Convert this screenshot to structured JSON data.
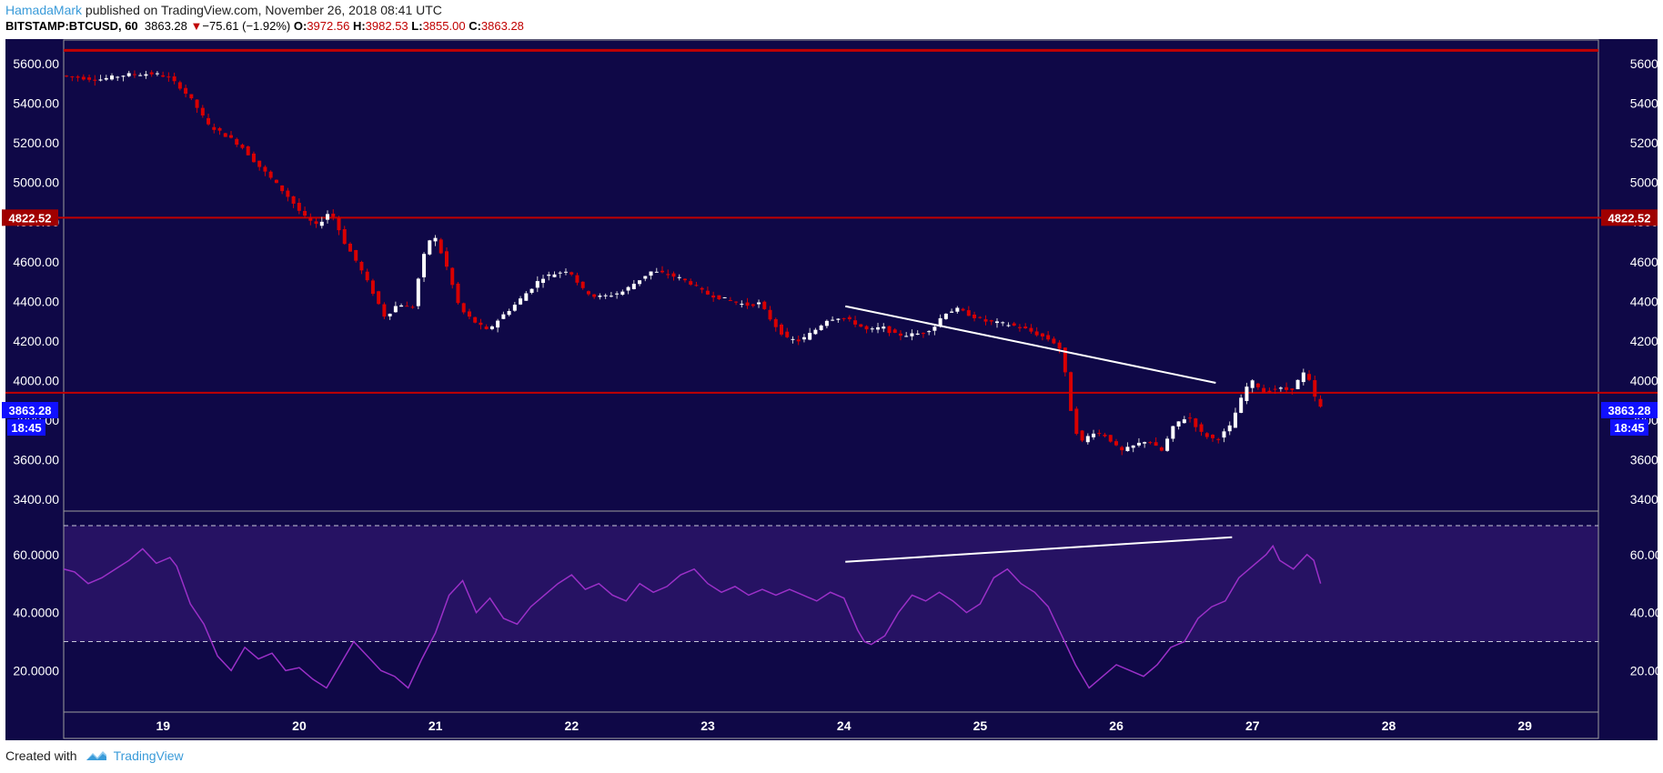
{
  "header": {
    "author": "HamadaMark",
    "published_text": " published on TradingView.com, November 26, 2018 08:41 UTC",
    "symbol": "BITSTAMP:BTCUSD, 60",
    "last": "3863.28",
    "change_arrow": "▼",
    "change": "−75.61 (−1.92%)",
    "o_label": "O:",
    "o_value": "3972.56",
    "h_label": "H:",
    "h_value": "3982.53",
    "l_label": "L:",
    "l_value": "3855.00",
    "c_label": "C:",
    "c_value": "3863.28"
  },
  "footer": {
    "created_with": "Created with",
    "brand": "TradingView"
  },
  "colors": {
    "panel_bg": "#0f0847",
    "rsi_band": "#261263",
    "up_candle": "#ffffff",
    "down_candle": "#d80000",
    "level_line": "#c20000",
    "rsi_line": "#9b30c8",
    "trendline": "#ffffff",
    "price_tag": "#1010ff",
    "level_tag": "#a00000",
    "axis_text": "#ffffff",
    "frame": "#9e9e9e"
  },
  "chart_data": {
    "type": "candlestick",
    "price_axis": {
      "ylim": [
        3340,
        5720
      ],
      "ticks": [
        "3400.00",
        "3600.00",
        "3800.00",
        "4000.00",
        "4200.00",
        "4400.00",
        "4600.00",
        "4800.00",
        "5000.00",
        "5200.00",
        "5400.00",
        "5600.00"
      ]
    },
    "time_axis": {
      "xlim": [
        18.27,
        29.54
      ],
      "ticks": [
        {
          "x": 19,
          "label": "19"
        },
        {
          "x": 20,
          "label": "20"
        },
        {
          "x": 21,
          "label": "21"
        },
        {
          "x": 22,
          "label": "22"
        },
        {
          "x": 23,
          "label": "23"
        },
        {
          "x": 24,
          "label": "24"
        },
        {
          "x": 25,
          "label": "25"
        },
        {
          "x": 26,
          "label": "26"
        },
        {
          "x": 27,
          "label": "27"
        },
        {
          "x": 28,
          "label": "28"
        },
        {
          "x": 29,
          "label": "29"
        }
      ]
    },
    "horizontal_levels": [
      5668,
      4822.52,
      3938
    ],
    "tags": {
      "level": "4822.52",
      "last_price": "3863.28",
      "countdown": "18:45"
    },
    "price_path": [
      [
        18.27,
        5540
      ],
      [
        18.55,
        5520
      ],
      [
        18.75,
        5545
      ],
      [
        18.95,
        5550
      ],
      [
        19.05,
        5535
      ],
      [
        19.15,
        5480
      ],
      [
        19.25,
        5400
      ],
      [
        19.35,
        5290
      ],
      [
        19.5,
        5230
      ],
      [
        19.6,
        5180
      ],
      [
        19.7,
        5100
      ],
      [
        19.8,
        5030
      ],
      [
        19.95,
        4920
      ],
      [
        20.05,
        4830
      ],
      [
        20.15,
        4780
      ],
      [
        20.25,
        4860
      ],
      [
        20.35,
        4700
      ],
      [
        20.45,
        4590
      ],
      [
        20.55,
        4460
      ],
      [
        20.65,
        4320
      ],
      [
        20.75,
        4390
      ],
      [
        20.85,
        4360
      ],
      [
        20.92,
        4600
      ],
      [
        21.0,
        4750
      ],
      [
        21.1,
        4580
      ],
      [
        21.2,
        4360
      ],
      [
        21.3,
        4300
      ],
      [
        21.4,
        4250
      ],
      [
        21.5,
        4320
      ],
      [
        21.6,
        4380
      ],
      [
        21.7,
        4450
      ],
      [
        21.8,
        4520
      ],
      [
        21.9,
        4540
      ],
      [
        22.0,
        4560
      ],
      [
        22.1,
        4460
      ],
      [
        22.2,
        4420
      ],
      [
        22.3,
        4430
      ],
      [
        22.4,
        4450
      ],
      [
        22.5,
        4500
      ],
      [
        22.6,
        4550
      ],
      [
        22.7,
        4540
      ],
      [
        22.8,
        4520
      ],
      [
        22.9,
        4490
      ],
      [
        23.0,
        4440
      ],
      [
        23.1,
        4420
      ],
      [
        23.2,
        4400
      ],
      [
        23.3,
        4380
      ],
      [
        23.4,
        4390
      ],
      [
        23.5,
        4290
      ],
      [
        23.6,
        4210
      ],
      [
        23.7,
        4200
      ],
      [
        23.8,
        4250
      ],
      [
        23.9,
        4310
      ],
      [
        24.0,
        4320
      ],
      [
        24.1,
        4290
      ],
      [
        24.2,
        4250
      ],
      [
        24.3,
        4270
      ],
      [
        24.4,
        4230
      ],
      [
        24.5,
        4230
      ],
      [
        24.6,
        4240
      ],
      [
        24.7,
        4280
      ],
      [
        24.75,
        4340
      ],
      [
        24.85,
        4360
      ],
      [
        24.95,
        4330
      ],
      [
        25.05,
        4300
      ],
      [
        25.15,
        4290
      ],
      [
        25.25,
        4280
      ],
      [
        25.35,
        4260
      ],
      [
        25.45,
        4230
      ],
      [
        25.55,
        4200
      ],
      [
        25.62,
        4150
      ],
      [
        25.68,
        3870
      ],
      [
        25.75,
        3680
      ],
      [
        25.85,
        3740
      ],
      [
        25.95,
        3720
      ],
      [
        26.05,
        3640
      ],
      [
        26.15,
        3670
      ],
      [
        26.25,
        3700
      ],
      [
        26.35,
        3640
      ],
      [
        26.45,
        3780
      ],
      [
        26.55,
        3820
      ],
      [
        26.65,
        3730
      ],
      [
        26.75,
        3700
      ],
      [
        26.85,
        3760
      ],
      [
        26.92,
        3880
      ],
      [
        27.0,
        4000
      ],
      [
        27.05,
        3980
      ],
      [
        27.1,
        3940
      ],
      [
        27.2,
        3960
      ],
      [
        27.3,
        3950
      ],
      [
        27.4,
        4040
      ],
      [
        27.45,
        3980
      ],
      [
        27.5,
        3863.28
      ]
    ],
    "trendline_price": {
      "from": [
        24.01,
        4375
      ],
      "to": [
        26.73,
        3988
      ]
    },
    "rsi": {
      "ylim": [
        6,
        75
      ],
      "ticks": [
        "20.0000",
        "40.0000",
        "60.0000"
      ],
      "band": [
        30,
        70
      ],
      "values": [
        [
          18.27,
          55
        ],
        [
          18.35,
          54
        ],
        [
          18.45,
          50
        ],
        [
          18.55,
          52
        ],
        [
          18.65,
          55
        ],
        [
          18.75,
          58
        ],
        [
          18.85,
          62
        ],
        [
          18.95,
          57
        ],
        [
          19.05,
          59
        ],
        [
          19.1,
          56
        ],
        [
          19.2,
          43
        ],
        [
          19.3,
          36
        ],
        [
          19.4,
          25
        ],
        [
          19.5,
          20
        ],
        [
          19.6,
          28
        ],
        [
          19.7,
          24
        ],
        [
          19.8,
          26
        ],
        [
          19.9,
          20
        ],
        [
          20.0,
          21
        ],
        [
          20.1,
          17
        ],
        [
          20.2,
          14
        ],
        [
          20.3,
          22
        ],
        [
          20.4,
          30
        ],
        [
          20.5,
          25
        ],
        [
          20.6,
          20
        ],
        [
          20.7,
          18
        ],
        [
          20.8,
          14
        ],
        [
          20.9,
          24
        ],
        [
          21.0,
          33
        ],
        [
          21.1,
          46
        ],
        [
          21.2,
          51
        ],
        [
          21.3,
          40
        ],
        [
          21.4,
          45
        ],
        [
          21.5,
          38
        ],
        [
          21.6,
          36
        ],
        [
          21.7,
          42
        ],
        [
          21.8,
          46
        ],
        [
          21.9,
          50
        ],
        [
          22.0,
          53
        ],
        [
          22.1,
          48
        ],
        [
          22.2,
          50
        ],
        [
          22.3,
          46
        ],
        [
          22.4,
          44
        ],
        [
          22.5,
          50
        ],
        [
          22.6,
          47
        ],
        [
          22.7,
          49
        ],
        [
          22.8,
          53
        ],
        [
          22.9,
          55
        ],
        [
          23.0,
          50
        ],
        [
          23.1,
          47
        ],
        [
          23.2,
          49
        ],
        [
          23.3,
          46
        ],
        [
          23.4,
          48
        ],
        [
          23.5,
          46
        ],
        [
          23.6,
          48
        ],
        [
          23.7,
          46
        ],
        [
          23.8,
          44
        ],
        [
          23.9,
          47
        ],
        [
          24.0,
          45
        ],
        [
          24.1,
          34
        ],
        [
          24.15,
          30
        ],
        [
          24.2,
          29
        ],
        [
          24.3,
          32
        ],
        [
          24.4,
          40
        ],
        [
          24.5,
          46
        ],
        [
          24.6,
          44
        ],
        [
          24.7,
          47
        ],
        [
          24.8,
          44
        ],
        [
          24.9,
          40
        ],
        [
          25.0,
          43
        ],
        [
          25.1,
          52
        ],
        [
          25.2,
          55
        ],
        [
          25.3,
          50
        ],
        [
          25.4,
          47
        ],
        [
          25.5,
          42
        ],
        [
          25.6,
          32
        ],
        [
          25.7,
          22
        ],
        [
          25.8,
          14
        ],
        [
          25.9,
          18
        ],
        [
          26.0,
          22
        ],
        [
          26.1,
          20
        ],
        [
          26.2,
          18
        ],
        [
          26.3,
          22
        ],
        [
          26.4,
          28
        ],
        [
          26.5,
          30
        ],
        [
          26.6,
          38
        ],
        [
          26.7,
          42
        ],
        [
          26.8,
          44
        ],
        [
          26.9,
          52
        ],
        [
          27.0,
          56
        ],
        [
          27.1,
          60
        ],
        [
          27.15,
          63
        ],
        [
          27.2,
          58
        ],
        [
          27.3,
          55
        ],
        [
          27.4,
          60
        ],
        [
          27.45,
          58
        ],
        [
          27.5,
          50
        ]
      ],
      "trendline": {
        "from": [
          24.01,
          57.5
        ],
        "to": [
          26.85,
          66
        ]
      }
    }
  }
}
